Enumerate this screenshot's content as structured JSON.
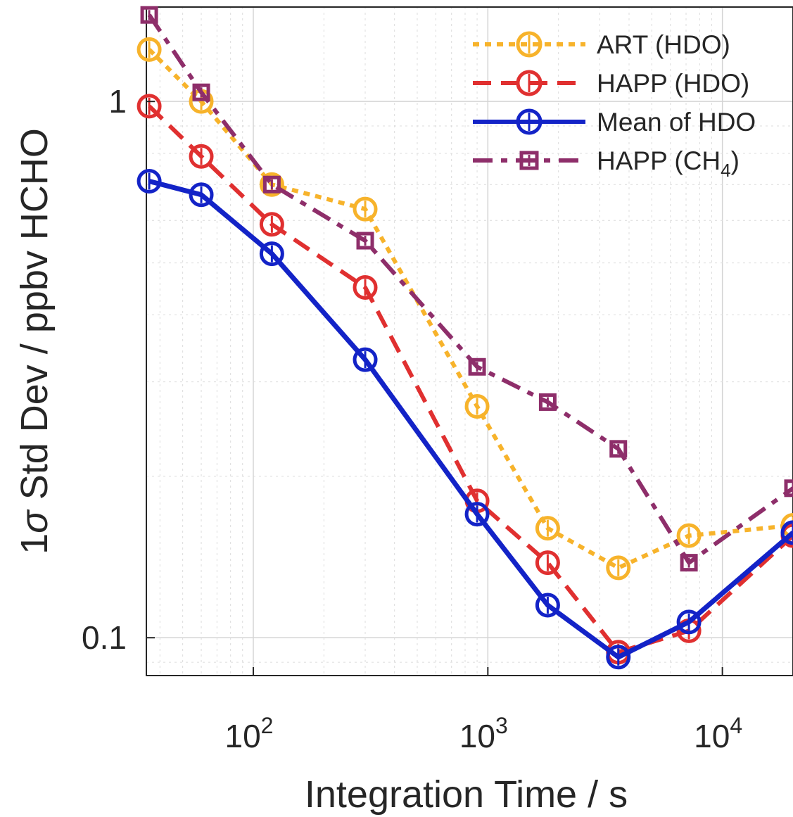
{
  "chart_data": {
    "type": "line",
    "title": "",
    "xlabel": "Integration Time / s",
    "ylabel_prefix": "1",
    "ylabel_symbol": "σ",
    "ylabel_suffix": " Std Dev / ppbv HCHO",
    "xscale": "log",
    "yscale": "log",
    "xlim": [
      35,
      20000
    ],
    "ylim": [
      0.085,
      1.5
    ],
    "x_ticks": [
      {
        "value": 100,
        "base": "10",
        "exp": "2"
      },
      {
        "value": 1000,
        "base": "10",
        "exp": "3"
      },
      {
        "value": 10000,
        "base": "10",
        "exp": "4"
      }
    ],
    "y_ticks": [
      {
        "value": 0.1,
        "label": "0.1"
      },
      {
        "value": 1,
        "label": "1"
      }
    ],
    "grid": true,
    "legend_position": "top-right",
    "x": [
      36,
      60,
      120,
      300,
      900,
      1800,
      3600,
      7200,
      20000
    ],
    "series": [
      {
        "name": "ART (HDO)",
        "values": [
          1.25,
          1.0,
          0.7,
          0.63,
          0.27,
          0.16,
          0.135,
          0.155,
          0.162
        ],
        "color": "#F7B32B",
        "marker": "circle",
        "dash": "dotted"
      },
      {
        "name": "HAPP (HDO)",
        "values": [
          0.98,
          0.79,
          0.59,
          0.45,
          0.18,
          0.138,
          0.094,
          0.103,
          0.155
        ],
        "color": "#E03030",
        "marker": "circle",
        "dash": "dashed"
      },
      {
        "name": "Mean of HDO",
        "values": [
          0.71,
          0.67,
          0.52,
          0.33,
          0.17,
          0.115,
          0.092,
          0.107,
          0.157
        ],
        "color": "#1323C7",
        "marker": "circle",
        "dash": "solid"
      },
      {
        "name_main": "HAPP (CH",
        "name_sub": "4",
        "name_close": ")",
        "values": [
          1.45,
          1.04,
          0.7,
          0.55,
          0.32,
          0.275,
          0.225,
          0.138,
          0.19
        ],
        "color": "#8E2E6A",
        "marker": "square",
        "dash": "dashdot"
      }
    ]
  }
}
